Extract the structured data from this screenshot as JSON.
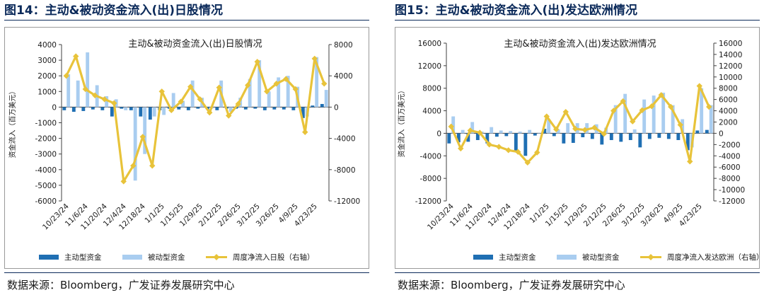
{
  "colors": {
    "active": "#1f6fb3",
    "passive": "#a9cdf0",
    "net": "#e8c33a",
    "axis": "#404040",
    "title": "#0b2a5a"
  },
  "source_text": "数据来源：Bloomberg，广发证券发展研究中心",
  "chart_data": [
    {
      "type": "bar",
      "figure_title": "图14：主动&被动资金流入(出)日股情况",
      "title": "主动&被动资金流入(出)日股情况",
      "ylabel": "资金流入（百万美元）",
      "ylim": [
        -6000,
        4000
      ],
      "yticks": [
        4000,
        3000,
        2000,
        1000,
        0,
        -1000,
        -2000,
        -3000,
        -4000,
        -5000,
        -6000
      ],
      "ylim_right": [
        -12000,
        8000
      ],
      "yticks_right": [
        8000,
        4000,
        0,
        -4000,
        -8000,
        -12000
      ],
      "category_labels": [
        "10/23/24",
        "11/6/24",
        "11/20/24",
        "12/4/24",
        "12/18/24",
        "1/1/25",
        "1/15/25",
        "1/29/25",
        "2/12/25",
        "2/26/25",
        "3/12/25",
        "3/26/25",
        "4/9/25",
        "4/23/25"
      ],
      "categories": [
        "10/23/24",
        "10/30/24",
        "11/6/24",
        "11/13/24",
        "11/20/24",
        "11/27/24",
        "12/4/24",
        "12/11/24",
        "12/18/24",
        "12/25/24",
        "1/1/25",
        "1/8/25",
        "1/15/25",
        "1/22/25",
        "1/29/25",
        "2/5/25",
        "2/12/25",
        "2/19/25",
        "2/26/25",
        "3/5/25",
        "3/12/25",
        "3/19/25",
        "3/26/25",
        "4/2/25",
        "4/9/25",
        "4/16/25",
        "4/23/25",
        "4/30/25"
      ],
      "series": [
        {
          "name": "主动型资金",
          "kind": "bar",
          "axis": "left",
          "values": [
            -200,
            -300,
            -250,
            -150,
            -200,
            -600,
            -100,
            -200,
            -600,
            -800,
            -200,
            -100,
            -150,
            -200,
            -100,
            -150,
            -200,
            -100,
            -100,
            -150,
            -100,
            -200,
            -150,
            -150,
            -200,
            -700,
            100,
            200
          ]
        },
        {
          "name": "被动型资金",
          "kind": "bar",
          "axis": "left",
          "values": [
            2100,
            1700,
            3500,
            1400,
            700,
            500,
            -200,
            -4700,
            -3000,
            -600,
            -500,
            900,
            400,
            1700,
            600,
            -100,
            1700,
            -300,
            600,
            1800,
            3000,
            1000,
            1900,
            2000,
            1300,
            -600,
            3200,
            1100
          ]
        },
        {
          "name": "周度净流入日股（右轴）",
          "kind": "line",
          "axis": "right",
          "values": [
            4000,
            6500,
            2300,
            1500,
            1000,
            500,
            -9500,
            -7500,
            -3800,
            -7500,
            2000,
            -400,
            700,
            2600,
            1000,
            -700,
            2500,
            -1100,
            400,
            2800,
            5800,
            2000,
            3000,
            3600,
            2300,
            -3200,
            6200,
            3000
          ]
        }
      ],
      "legend": [
        "主动型资金",
        "被动型资金",
        "周度净流入日股（右轴）"
      ],
      "legend_position": "bottom"
    },
    {
      "type": "bar",
      "figure_title": "图15：主动&被动资金流入(出)发达欧洲情况",
      "title": "主动&被动资金流入(出)发达欧洲情况",
      "ylabel": "资金流入（百万美元）",
      "ylim": [
        -12000,
        16000
      ],
      "yticks": [
        16000,
        12000,
        8000,
        4000,
        0,
        -4000,
        -8000,
        -12000
      ],
      "ylim_right": [
        -12000,
        16000
      ],
      "yticks_right": [
        16000,
        14000,
        12000,
        10000,
        8000,
        6000,
        4000,
        2000,
        0,
        -2000,
        -4000,
        -6000,
        -8000,
        -10000,
        -12000
      ],
      "category_labels": [
        "10/23/24",
        "11/6/24",
        "11/20/24",
        "12/4/24",
        "12/18/24",
        "1/1/25",
        "1/15/25",
        "1/29/25",
        "2/12/25",
        "2/26/25",
        "3/12/25",
        "3/26/25",
        "4/9/25",
        "4/23/25"
      ],
      "categories": [
        "10/23/24",
        "10/30/24",
        "11/6/24",
        "11/13/24",
        "11/20/24",
        "11/27/24",
        "12/4/24",
        "12/11/24",
        "12/18/24",
        "12/25/24",
        "1/1/25",
        "1/8/25",
        "1/15/25",
        "1/22/25",
        "1/29/25",
        "2/5/25",
        "2/12/25",
        "2/19/25",
        "2/26/25",
        "3/5/25",
        "3/12/25",
        "3/19/25",
        "3/26/25",
        "4/2/25",
        "4/9/25",
        "4/16/25",
        "4/23/25",
        "4/30/25"
      ],
      "series": [
        {
          "name": "主动型资金",
          "kind": "bar",
          "axis": "left",
          "values": [
            -1800,
            -1600,
            -1500,
            -1200,
            -1800,
            -600,
            -500,
            -3200,
            -4000,
            -400,
            800,
            -500,
            -1800,
            -1700,
            -700,
            -1000,
            -2000,
            -1200,
            -1500,
            -1200,
            -2500,
            -1000,
            -800,
            -1000,
            -1200,
            -3000,
            500,
            600
          ]
        },
        {
          "name": "被动型资金",
          "kind": "bar",
          "axis": "left",
          "values": [
            3000,
            600,
            2000,
            300,
            1100,
            500,
            400,
            300,
            600,
            0,
            2500,
            700,
            1800,
            1800,
            1800,
            1600,
            1000,
            5000,
            7000,
            700,
            6000,
            6700,
            7200,
            5000,
            2500,
            -2500,
            8000,
            5000
          ]
        },
        {
          "name": "周度净流入发达欧洲（右轴）",
          "kind": "line",
          "axis": "right",
          "values": [
            1200,
            -2700,
            500,
            100,
            -2000,
            -2400,
            -3000,
            -3300,
            -5200,
            -3400,
            3000,
            700,
            3800,
            800,
            600,
            1000,
            -100,
            4000,
            5700,
            2100,
            4100,
            4800,
            6800,
            4700,
            1500,
            -5000,
            8400,
            4700
          ]
        }
      ],
      "legend": [
        "主动型资金",
        "被动型资金",
        "周度净流入发达欧洲（右轴）"
      ],
      "legend_position": "bottom"
    }
  ]
}
